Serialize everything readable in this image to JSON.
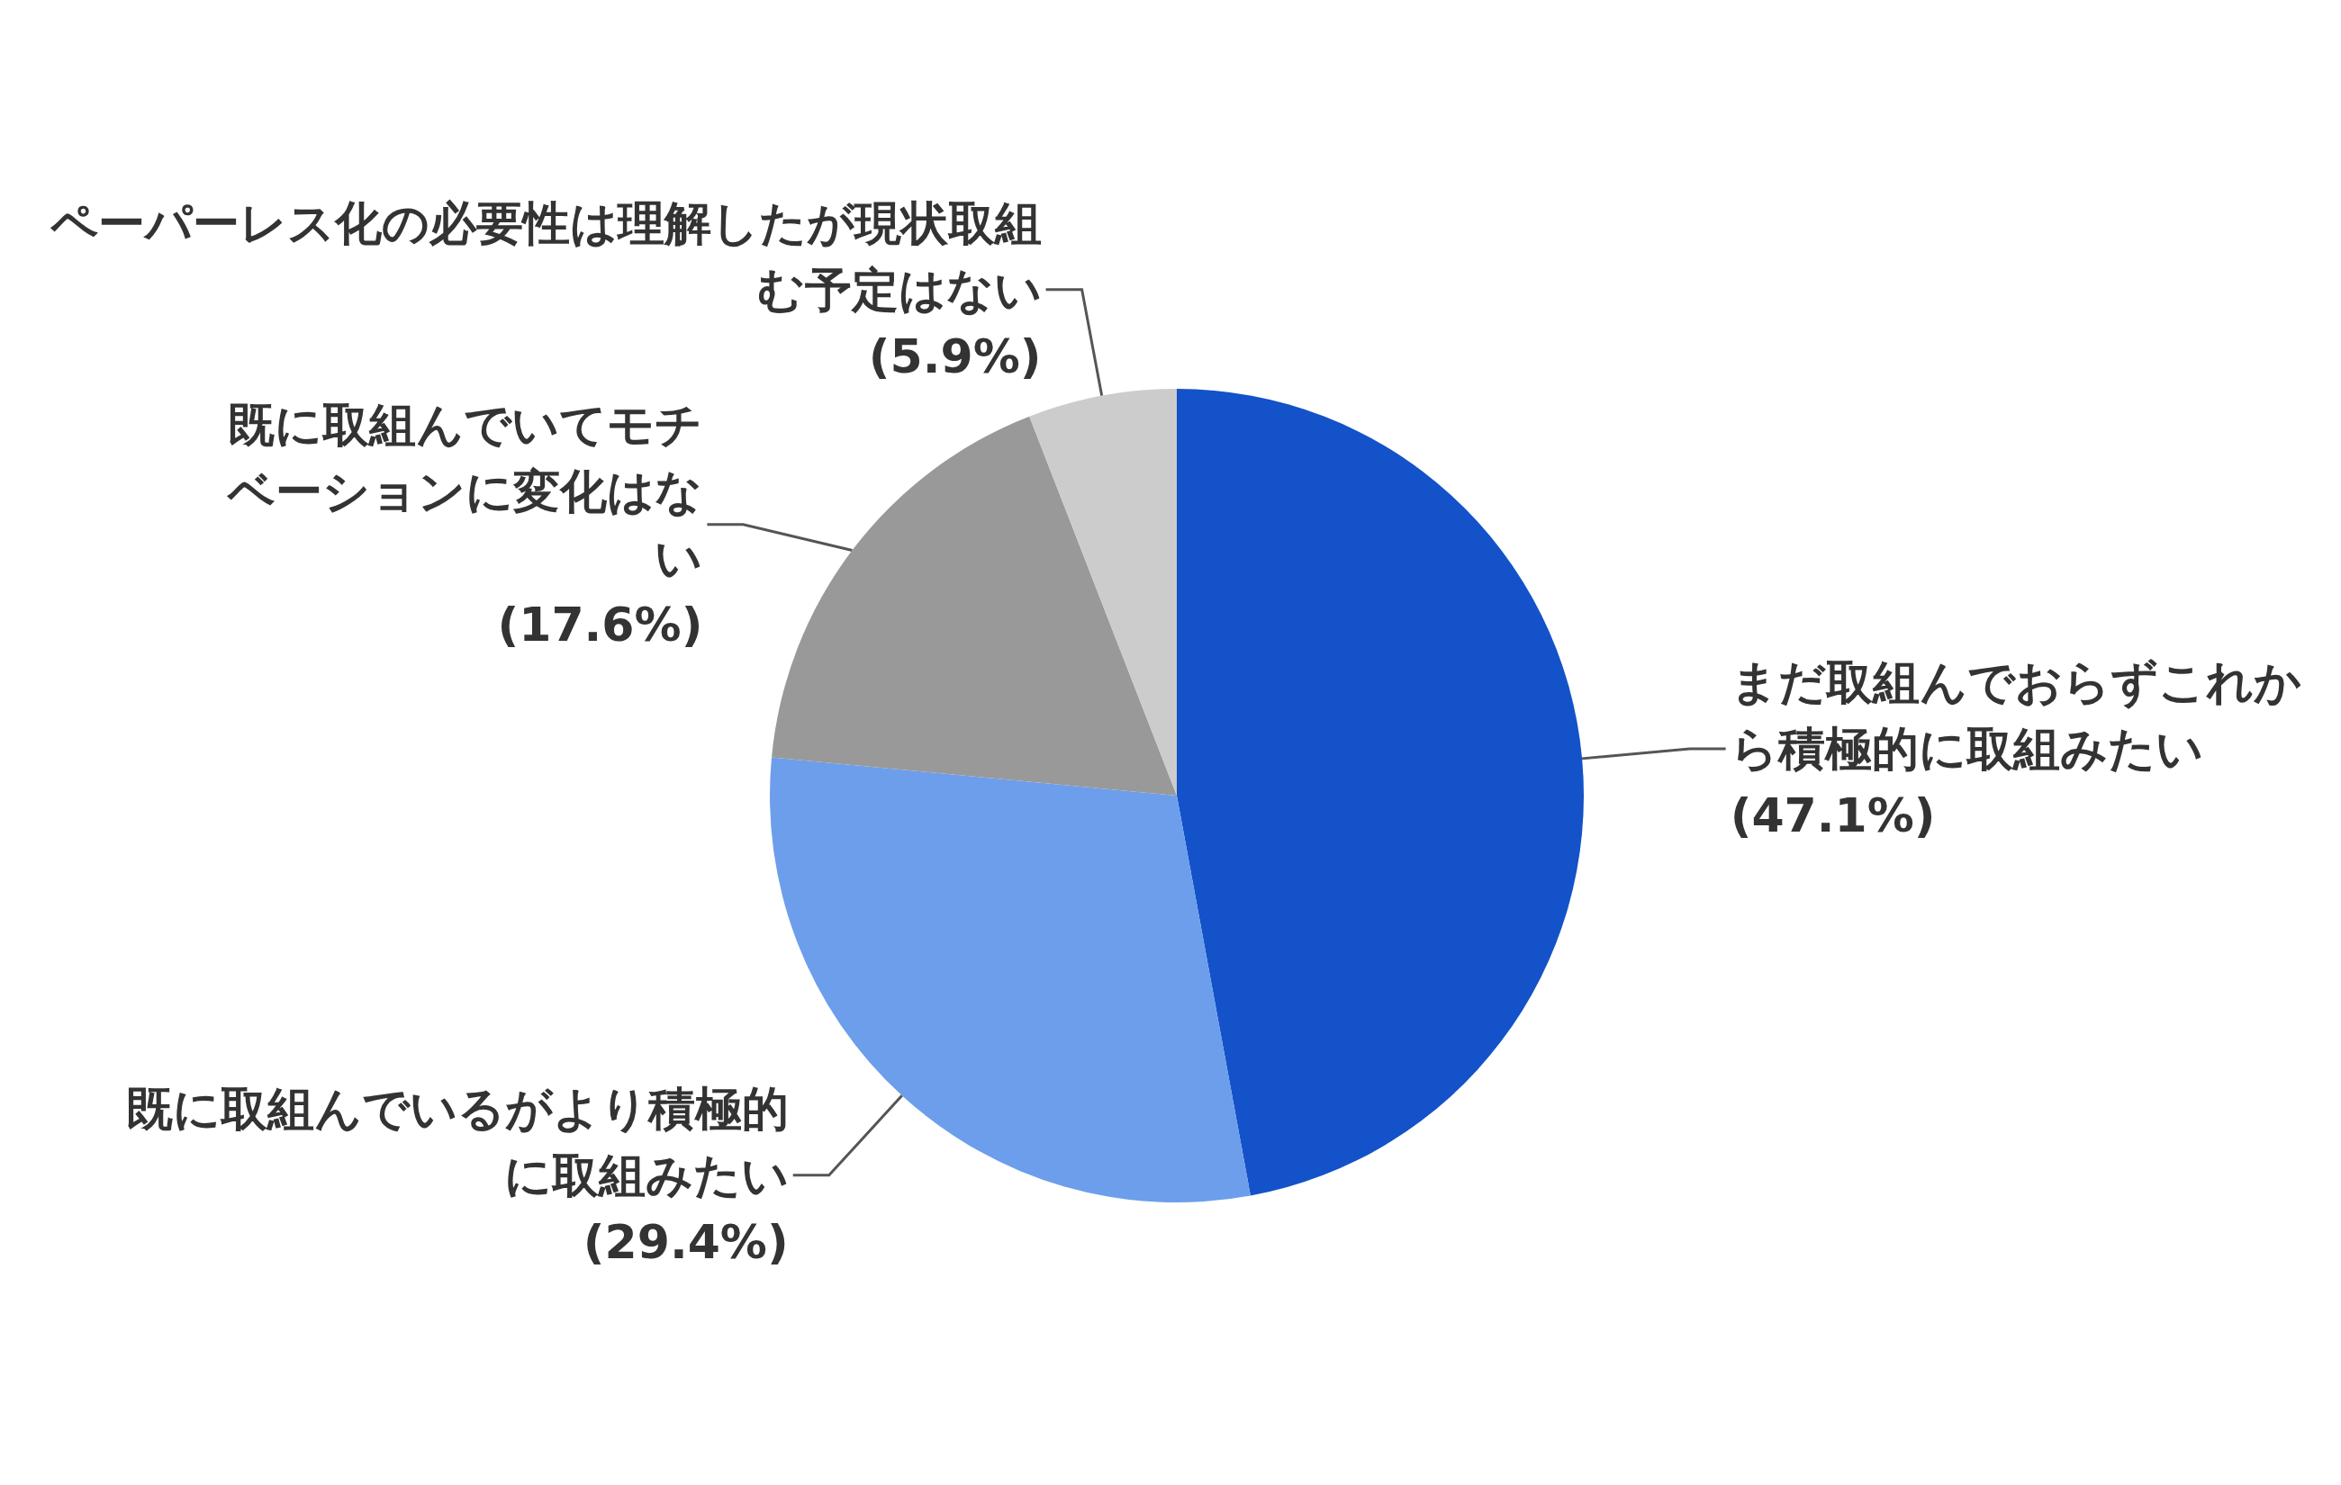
{
  "chart_data": {
    "type": "pie",
    "categories": [
      "まだ取組んでおらずこれから積極的に取組みたい",
      "既に取組んでいるがより積極的に取組みたい",
      "既に取組んでいてモチベーションに変化はない",
      "ペーパーレス化の必要性は理解したが現状取組む予定はない"
    ],
    "values": [
      47.1,
      29.4,
      17.6,
      5.9
    ],
    "value_labels": [
      "(47.1%)",
      "(29.4%)",
      "(17.6%)",
      "(5.9%)"
    ],
    "colors": [
      "#1352c9",
      "#6d9eeb",
      "#999999",
      "#cccccc"
    ],
    "legend": false
  }
}
